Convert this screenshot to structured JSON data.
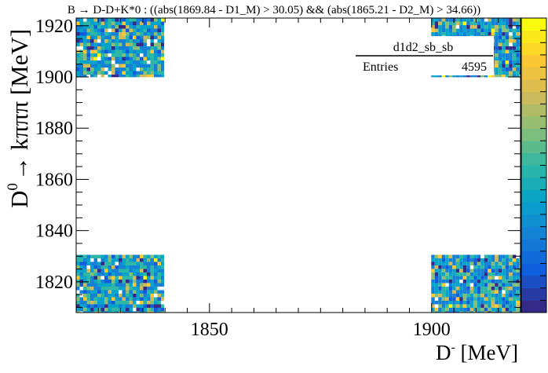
{
  "chart_data": {
    "type": "heatmap",
    "title": "B → D-D+K*0 : ((abs(1869.84 - D1_M) > 30.05) && (abs(1865.21 - D2_M) > 34.66))",
    "xlabel": "D⁻ [MeV]",
    "xlabel_main": "D",
    "xlabel_sup": "-",
    "xlabel_unit": " [MeV]",
    "ylabel": "D⁰ → kπππ [MeV]",
    "ylabel_main": "D",
    "ylabel_sup": "0",
    "ylabel_rest": "→ kπππ [MeV]",
    "xlim": [
      1820,
      1920
    ],
    "ylim": [
      1808,
      1923
    ],
    "x_ticks": [
      1850,
      1900
    ],
    "y_ticks": [
      1820,
      1840,
      1860,
      1880,
      1900,
      1920
    ],
    "x_tick_labels": [
      "1850",
      "1900"
    ],
    "y_tick_labels": [
      "1820",
      "1840",
      "1860",
      "1880",
      "1900",
      "1920"
    ],
    "populated_x_ranges": [
      [
        1820,
        1839.8
      ],
      [
        1899.9,
        1920
      ]
    ],
    "populated_y_ranges": [
      [
        1808,
        1830.55
      ],
      [
        1899.9,
        1923
      ]
    ],
    "stats_box": {
      "name": "d1d2_sb_sb",
      "entries_label": "Entries",
      "entries_value": "4595"
    },
    "colors": {
      "palette": [
        "#352a87",
        "#0f5cdd",
        "#1481d6",
        "#06a4ca",
        "#2eb7a4",
        "#87bf77",
        "#d1bb59",
        "#fec832",
        "#f9fb0e"
      ],
      "frame": "#000000",
      "background": "#ffffff"
    }
  }
}
